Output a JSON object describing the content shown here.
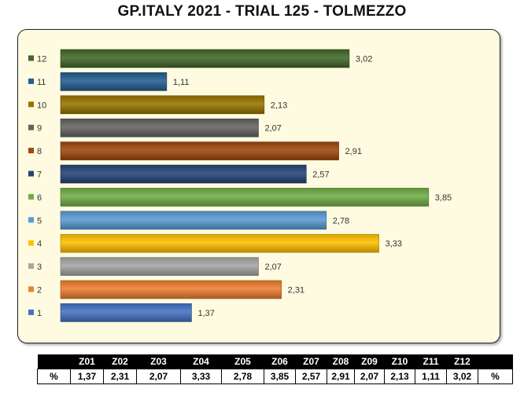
{
  "title": "GP.ITALY 2021 - TRIAL 125 - TOLMEZZO",
  "chart_data": {
    "type": "bar",
    "orientation": "horizontal",
    "title": "GP.ITALY 2021 - TRIAL 125 - TOLMEZZO",
    "categories": [
      "1",
      "2",
      "3",
      "4",
      "5",
      "6",
      "7",
      "8",
      "9",
      "10",
      "11",
      "12"
    ],
    "values": [
      1.37,
      2.31,
      2.07,
      3.33,
      2.78,
      3.85,
      2.57,
      2.91,
      2.07,
      2.13,
      1.11,
      3.02
    ],
    "value_labels": [
      "1,37",
      "2,31",
      "2,07",
      "3,33",
      "2,78",
      "3,85",
      "2,57",
      "2,91",
      "2,07",
      "2,13",
      "1,11",
      "3,02"
    ],
    "colors": [
      "#4472c4",
      "#ed7d31",
      "#a5a5a5",
      "#ffc000",
      "#5b9bd5",
      "#70ad47",
      "#264478",
      "#9e480e",
      "#636363",
      "#997300",
      "#255e91",
      "#43682b"
    ],
    "xlim": [
      0,
      4.3
    ],
    "grid": false,
    "legend": "none"
  },
  "table": {
    "headers": [
      "",
      "Z01",
      "Z02",
      "Z03",
      "Z04",
      "Z05",
      "Z06",
      "Z07",
      "Z08",
      "Z09",
      "Z10",
      "Z11",
      "Z12",
      ""
    ],
    "row": [
      "%",
      "1,37",
      "2,31",
      "2,07",
      "3,33",
      "2,78",
      "3,85",
      "2,57",
      "2,91",
      "2,07",
      "2,13",
      "1,11",
      "3,02",
      "%"
    ]
  }
}
